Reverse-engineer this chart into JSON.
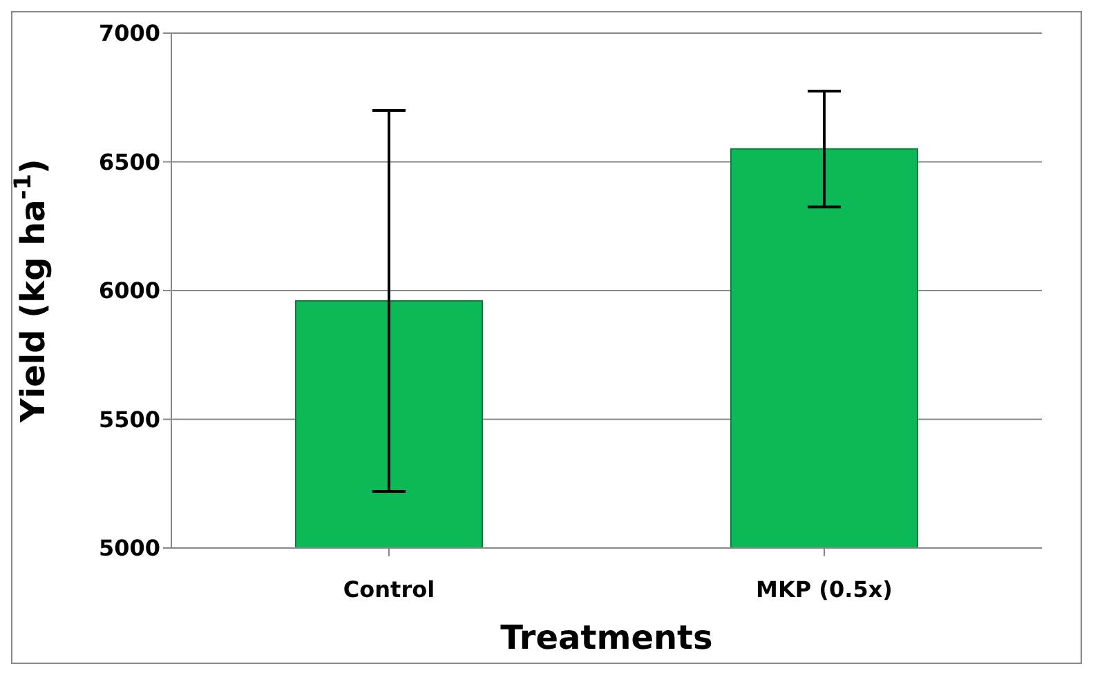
{
  "chart_data": {
    "type": "bar",
    "xlabel": "Treatments",
    "ylabel": "Yield (kg ha$^{-1}$)",
    "categories": [
      "Control",
      "MKP (0.5x)"
    ],
    "values": [
      5960,
      6550
    ],
    "errors": [
      740,
      225
    ],
    "color": "#0bba57",
    "ylim": [
      5000,
      7000
    ],
    "yticks": [
      5000,
      5500,
      6000,
      6500,
      7000
    ],
    "grid": "y"
  }
}
